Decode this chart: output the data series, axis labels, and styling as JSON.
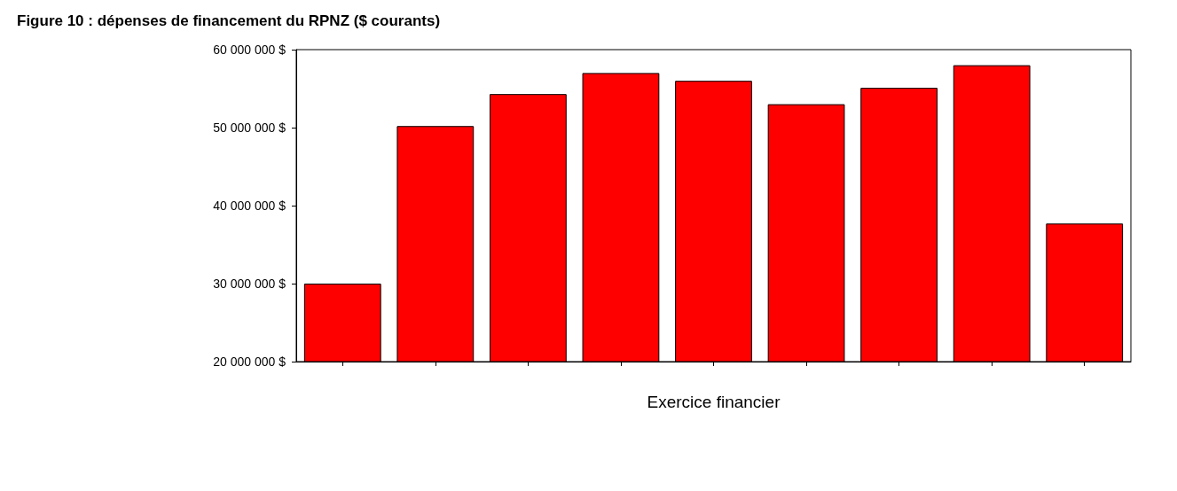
{
  "chart_data": {
    "type": "bar",
    "title": "Figure 10 : dépenses de financement du RPNZ ($ courants)",
    "xlabel": "Exercice financier",
    "categories": [
      null,
      null,
      null,
      null,
      null,
      null,
      null,
      null,
      null
    ],
    "values": [
      30000000,
      50200000,
      54300000,
      57000000,
      56000000,
      53000000,
      55100000,
      58000000,
      37700000
    ],
    "color": "#ff0000",
    "ylim": [
      20000000,
      60000000
    ],
    "yticks": [
      {
        "value": 20000000,
        "label": "20 000 000 $"
      },
      {
        "value": 30000000,
        "label": "30 000 000 $"
      },
      {
        "value": 40000000,
        "label": "40 000 000 $"
      },
      {
        "value": 50000000,
        "label": "50 000 000 $"
      },
      {
        "value": 60000000,
        "label": "60 000 000 $"
      }
    ],
    "grid": false
  }
}
